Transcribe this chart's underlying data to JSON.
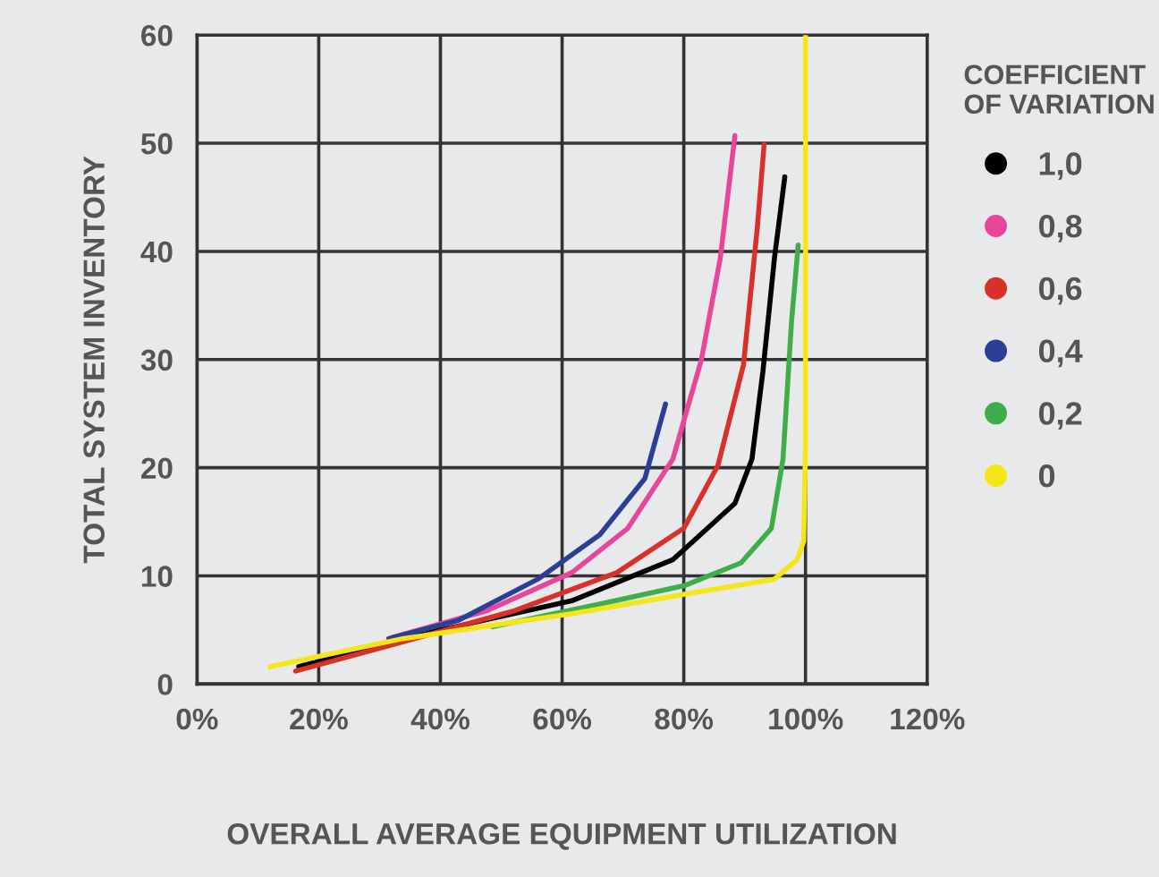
{
  "chart_data": {
    "type": "line",
    "xlabel": "OVERALL AVERAGE EQUIPMENT UTILIZATION",
    "ylabel": "TOTAL SYSTEM INVENTORY",
    "legend_title": "COEFFICIENT\nOF VARIATION",
    "legend": "right",
    "grid": true,
    "marker": "none",
    "line_style": "solid",
    "xlim": [
      0,
      120
    ],
    "ylim": [
      0,
      60
    ],
    "xticks": [
      {
        "value": 0,
        "label": "0%"
      },
      {
        "value": 20,
        "label": "20%"
      },
      {
        "value": 40,
        "label": "40%"
      },
      {
        "value": 60,
        "label": "60%"
      },
      {
        "value": 80,
        "label": "80%"
      },
      {
        "value": 100,
        "label": "100%"
      },
      {
        "value": 120,
        "label": "120%"
      }
    ],
    "yticks": [
      0,
      10,
      20,
      30,
      40,
      50,
      60
    ],
    "series": [
      {
        "name": "1,0",
        "color": "#000000",
        "x": [
          16.7,
          38.4,
          61.6,
          78.2,
          88.4,
          91.2,
          93,
          94.9,
          96.6
        ],
        "values": [
          1.6,
          4.8,
          7.7,
          11.5,
          16.7,
          20.8,
          28.9,
          39.4,
          46.9
        ]
      },
      {
        "name": "0,8",
        "color": "#e8469a",
        "x": [
          32,
          47.7,
          61.6,
          70.8,
          78.2,
          82.9,
          86,
          88.4
        ],
        "values": [
          4.3,
          6.8,
          10.3,
          14.4,
          20.8,
          30,
          39.4,
          50.7
        ]
      },
      {
        "name": "0,6",
        "color": "#d9302a",
        "x": [
          16.2,
          33.8,
          52.3,
          69,
          80,
          85.6,
          89.8,
          92.1,
          93.2
        ],
        "values": [
          1.2,
          3.9,
          6.8,
          10.3,
          14.4,
          20.2,
          29.5,
          42.3,
          49.9
        ]
      },
      {
        "name": "0,4",
        "color": "#2b3f96",
        "x": [
          31.5,
          43,
          56,
          66.2,
          73.6,
          77
        ],
        "values": [
          4.2,
          5.9,
          9.7,
          13.8,
          19.0,
          25.9
        ]
      },
      {
        "name": "0,2",
        "color": "#3fae49",
        "x": [
          48.6,
          66.2,
          80.1,
          89.4,
          94.4,
          96.3,
          97.7,
          98.8
        ],
        "values": [
          5.3,
          7.4,
          9.1,
          11.2,
          14.4,
          20.8,
          33.5,
          40.6
        ]
      },
      {
        "name": "0",
        "color": "#f5e61a",
        "x": [
          12,
          33.8,
          61.6,
          80.1,
          94.9,
          98.6,
          99.7,
          100,
          100
        ],
        "values": [
          1.6,
          4.2,
          6.5,
          8.3,
          9.7,
          11.5,
          13.2,
          21.9,
          60
        ]
      }
    ]
  }
}
